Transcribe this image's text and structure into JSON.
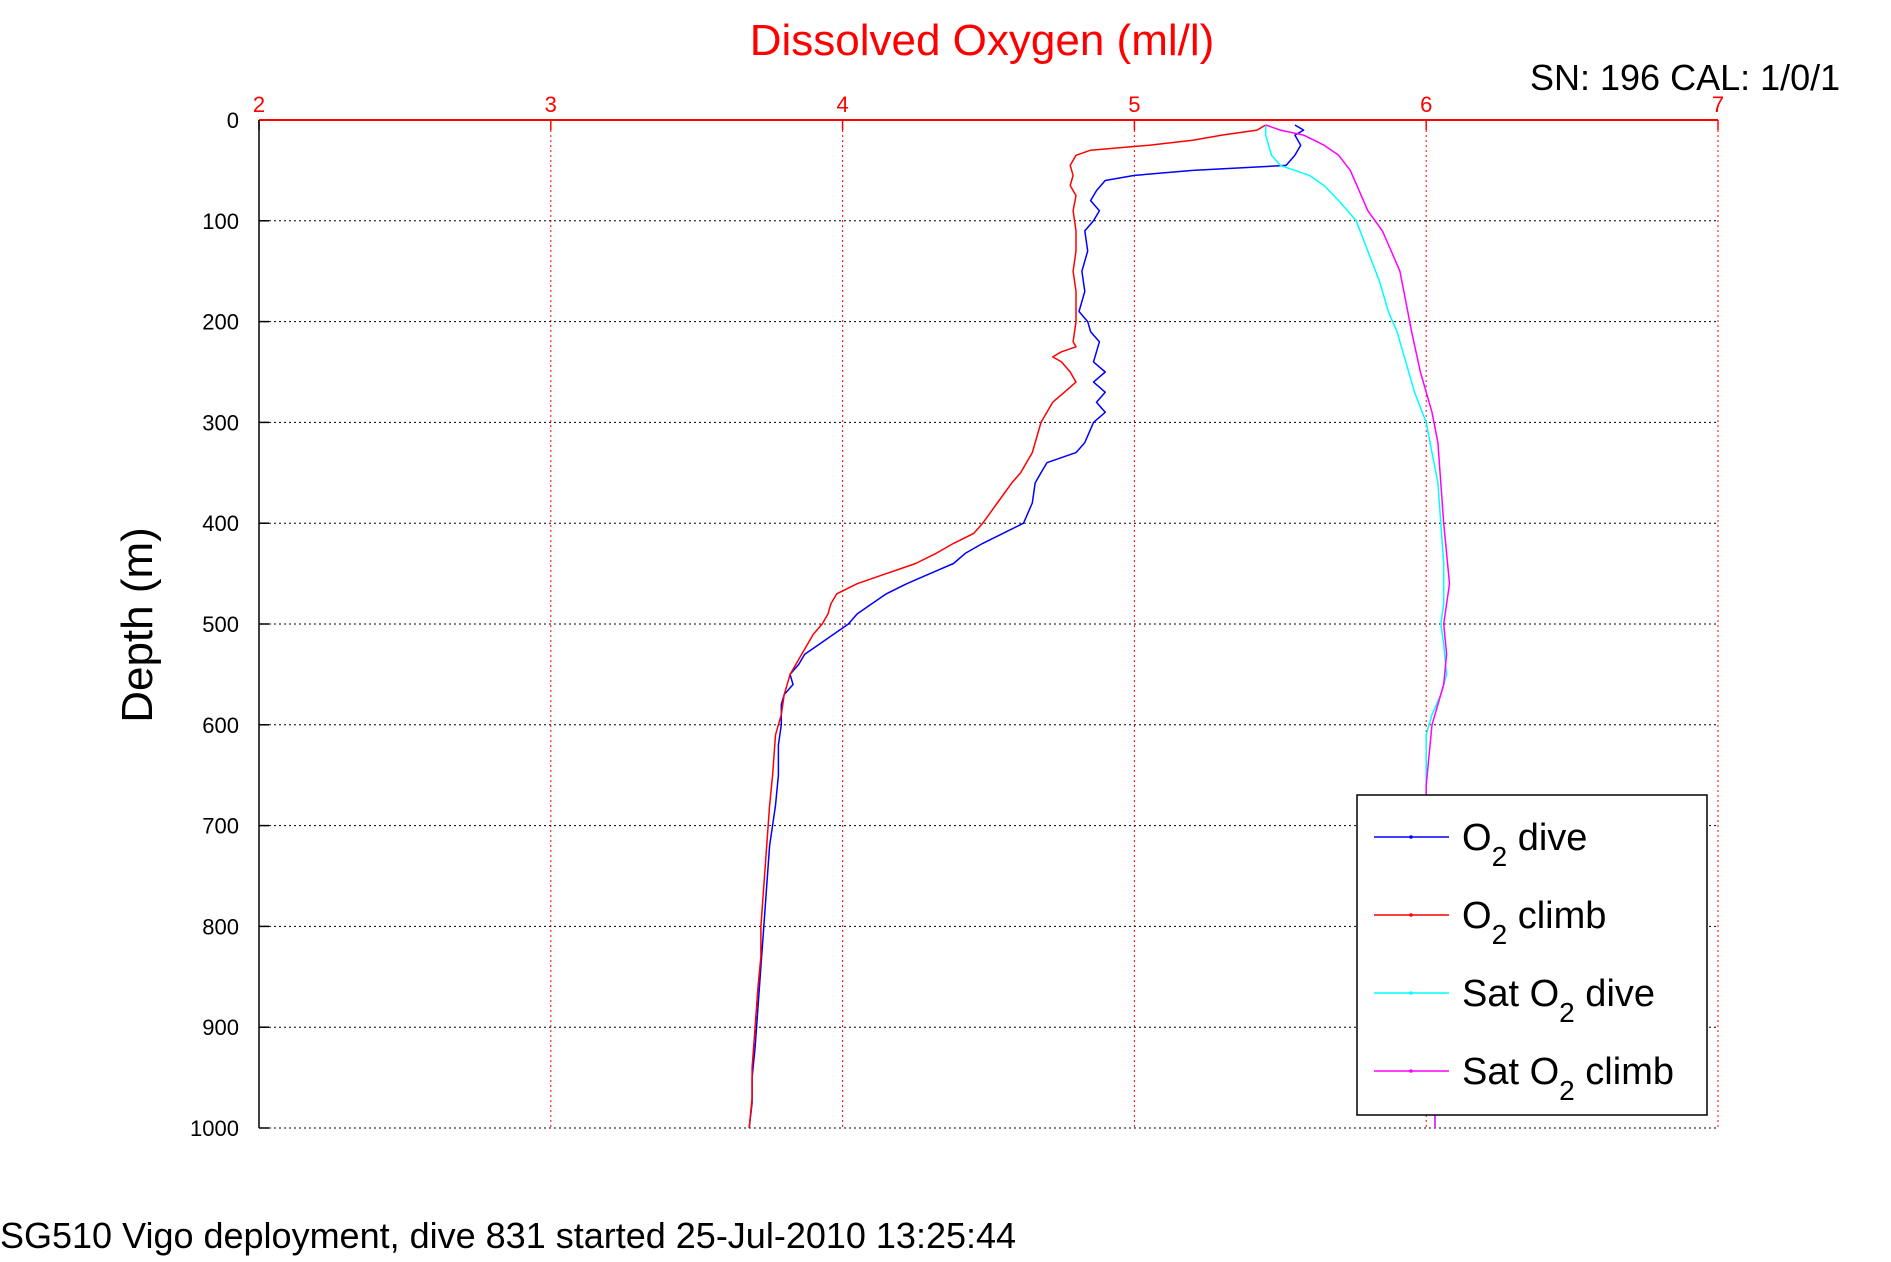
{
  "chart_data": {
    "type": "line",
    "title": "Dissolved Oxygen (ml/l)",
    "serial_label": "SN: 196  CAL: 1/0/1",
    "footer": "SG510 Vigo deployment, dive 831 started 25-Jul-2010 13:25:44",
    "xlabel": "",
    "ylabel": "Depth (m)",
    "xlim": [
      2,
      7
    ],
    "ylim": [
      0,
      1000
    ],
    "y_reversed": true,
    "x_axis_position": "top",
    "xticks": [
      2,
      3,
      4,
      5,
      6,
      7
    ],
    "yticks": [
      0,
      100,
      200,
      300,
      400,
      500,
      600,
      700,
      800,
      900,
      1000
    ],
    "grid": true,
    "legend_position": "bottom-right",
    "colors": {
      "axis_x": "#ff0000",
      "grid_x": "#ff0000",
      "grid_y": "#000000"
    },
    "legend": [
      {
        "name": "dive",
        "base": "O",
        "sub": "2",
        "prefix": "",
        "color": "#0000ff"
      },
      {
        "name": "climb",
        "base": "O",
        "sub": "2",
        "prefix": "",
        "color": "#ff0000"
      },
      {
        "name": "dive",
        "base": "O",
        "sub": "2",
        "prefix": "Sat",
        "color": "#00ffff"
      },
      {
        "name": "climb",
        "base": "O",
        "sub": "2",
        "prefix": "Sat",
        "color": "#ff00ff"
      }
    ],
    "series": [
      {
        "key": "o2-dive",
        "color": "#0000ff",
        "points": [
          [
            5.55,
            5
          ],
          [
            5.58,
            10
          ],
          [
            5.55,
            15
          ],
          [
            5.57,
            25
          ],
          [
            5.55,
            35
          ],
          [
            5.52,
            45
          ],
          [
            5.2,
            50
          ],
          [
            5.0,
            55
          ],
          [
            4.9,
            60
          ],
          [
            4.87,
            70
          ],
          [
            4.85,
            80
          ],
          [
            4.88,
            90
          ],
          [
            4.86,
            100
          ],
          [
            4.83,
            110
          ],
          [
            4.84,
            130
          ],
          [
            4.82,
            150
          ],
          [
            4.83,
            170
          ],
          [
            4.81,
            190
          ],
          [
            4.84,
            200
          ],
          [
            4.85,
            210
          ],
          [
            4.88,
            220
          ],
          [
            4.86,
            240
          ],
          [
            4.9,
            250
          ],
          [
            4.86,
            260
          ],
          [
            4.9,
            270
          ],
          [
            4.87,
            280
          ],
          [
            4.9,
            290
          ],
          [
            4.86,
            300
          ],
          [
            4.83,
            320
          ],
          [
            4.8,
            330
          ],
          [
            4.7,
            340
          ],
          [
            4.68,
            350
          ],
          [
            4.66,
            360
          ],
          [
            4.65,
            380
          ],
          [
            4.62,
            400
          ],
          [
            4.55,
            410
          ],
          [
            4.48,
            420
          ],
          [
            4.42,
            430
          ],
          [
            4.38,
            440
          ],
          [
            4.3,
            450
          ],
          [
            4.22,
            460
          ],
          [
            4.15,
            470
          ],
          [
            4.1,
            480
          ],
          [
            4.05,
            490
          ],
          [
            4.02,
            500
          ],
          [
            3.97,
            510
          ],
          [
            3.92,
            520
          ],
          [
            3.87,
            530
          ],
          [
            3.85,
            540
          ],
          [
            3.82,
            550
          ],
          [
            3.83,
            560
          ],
          [
            3.8,
            570
          ],
          [
            3.79,
            580
          ],
          [
            3.79,
            600
          ],
          [
            3.78,
            620
          ],
          [
            3.78,
            650
          ],
          [
            3.77,
            680
          ],
          [
            3.75,
            720
          ],
          [
            3.74,
            760
          ],
          [
            3.73,
            800
          ],
          [
            3.72,
            840
          ],
          [
            3.71,
            880
          ],
          [
            3.7,
            920
          ],
          [
            3.69,
            950
          ],
          [
            3.69,
            975
          ],
          [
            3.68,
            1000
          ]
        ]
      },
      {
        "key": "o2-climb",
        "color": "#ff0000",
        "points": [
          [
            5.45,
            5
          ],
          [
            5.42,
            10
          ],
          [
            5.3,
            15
          ],
          [
            5.2,
            20
          ],
          [
            5.05,
            25
          ],
          [
            4.85,
            30
          ],
          [
            4.8,
            35
          ],
          [
            4.78,
            45
          ],
          [
            4.79,
            55
          ],
          [
            4.78,
            65
          ],
          [
            4.8,
            75
          ],
          [
            4.79,
            90
          ],
          [
            4.8,
            110
          ],
          [
            4.8,
            130
          ],
          [
            4.79,
            150
          ],
          [
            4.8,
            170
          ],
          [
            4.8,
            200
          ],
          [
            4.79,
            220
          ],
          [
            4.8,
            225
          ],
          [
            4.75,
            230
          ],
          [
            4.72,
            235
          ],
          [
            4.75,
            240
          ],
          [
            4.78,
            250
          ],
          [
            4.8,
            260
          ],
          [
            4.76,
            270
          ],
          [
            4.72,
            280
          ],
          [
            4.7,
            290
          ],
          [
            4.68,
            300
          ],
          [
            4.67,
            310
          ],
          [
            4.65,
            330
          ],
          [
            4.61,
            350
          ],
          [
            4.58,
            360
          ],
          [
            4.53,
            380
          ],
          [
            4.48,
            400
          ],
          [
            4.45,
            410
          ],
          [
            4.38,
            420
          ],
          [
            4.32,
            430
          ],
          [
            4.25,
            440
          ],
          [
            4.15,
            450
          ],
          [
            4.05,
            460
          ],
          [
            3.98,
            470
          ],
          [
            3.96,
            480
          ],
          [
            3.95,
            490
          ],
          [
            3.93,
            500
          ],
          [
            3.9,
            510
          ],
          [
            3.86,
            530
          ],
          [
            3.82,
            550
          ],
          [
            3.8,
            570
          ],
          [
            3.79,
            590
          ],
          [
            3.77,
            610
          ],
          [
            3.76,
            650
          ],
          [
            3.75,
            680
          ],
          [
            3.74,
            720
          ],
          [
            3.73,
            760
          ],
          [
            3.72,
            800
          ],
          [
            3.72,
            830
          ],
          [
            3.71,
            860
          ],
          [
            3.7,
            900
          ],
          [
            3.69,
            940
          ],
          [
            3.69,
            970
          ],
          [
            3.68,
            1000
          ]
        ]
      },
      {
        "key": "sat-o2-dive",
        "color": "#00ffff",
        "points": [
          [
            5.45,
            5
          ],
          [
            5.45,
            15
          ],
          [
            5.46,
            25
          ],
          [
            5.47,
            35
          ],
          [
            5.5,
            45
          ],
          [
            5.55,
            50
          ],
          [
            5.6,
            55
          ],
          [
            5.65,
            65
          ],
          [
            5.7,
            80
          ],
          [
            5.76,
            100
          ],
          [
            5.8,
            130
          ],
          [
            5.84,
            160
          ],
          [
            5.87,
            190
          ],
          [
            5.9,
            210
          ],
          [
            5.93,
            240
          ],
          [
            5.96,
            270
          ],
          [
            6.0,
            300
          ],
          [
            6.02,
            330
          ],
          [
            6.04,
            360
          ],
          [
            6.05,
            400
          ],
          [
            6.06,
            440
          ],
          [
            6.06,
            480
          ],
          [
            6.05,
            500
          ],
          [
            6.06,
            520
          ],
          [
            6.07,
            550
          ],
          [
            6.05,
            570
          ],
          [
            6.02,
            590
          ],
          [
            6.0,
            610
          ],
          [
            6.0,
            650
          ],
          [
            6.0,
            700
          ],
          [
            6.01,
            750
          ],
          [
            6.01,
            800
          ],
          [
            6.02,
            850
          ],
          [
            6.02,
            900
          ],
          [
            6.03,
            950
          ],
          [
            6.03,
            1000
          ]
        ]
      },
      {
        "key": "sat-o2-climb",
        "color": "#ff00ff",
        "points": [
          [
            5.45,
            5
          ],
          [
            5.5,
            10
          ],
          [
            5.58,
            15
          ],
          [
            5.65,
            25
          ],
          [
            5.7,
            35
          ],
          [
            5.74,
            50
          ],
          [
            5.77,
            70
          ],
          [
            5.8,
            90
          ],
          [
            5.85,
            110
          ],
          [
            5.88,
            130
          ],
          [
            5.91,
            150
          ],
          [
            5.93,
            180
          ],
          [
            5.95,
            210
          ],
          [
            5.98,
            250
          ],
          [
            6.02,
            290
          ],
          [
            6.04,
            320
          ],
          [
            6.05,
            360
          ],
          [
            6.06,
            400
          ],
          [
            6.07,
            430
          ],
          [
            6.08,
            460
          ],
          [
            6.07,
            480
          ],
          [
            6.06,
            500
          ],
          [
            6.07,
            530
          ],
          [
            6.06,
            560
          ],
          [
            6.04,
            580
          ],
          [
            6.02,
            600
          ],
          [
            6.01,
            630
          ],
          [
            6.0,
            660
          ],
          [
            6.0,
            700
          ],
          [
            6.01,
            750
          ],
          [
            6.01,
            800
          ],
          [
            6.02,
            850
          ],
          [
            6.02,
            900
          ],
          [
            6.03,
            950
          ],
          [
            6.03,
            1000
          ]
        ]
      }
    ]
  }
}
